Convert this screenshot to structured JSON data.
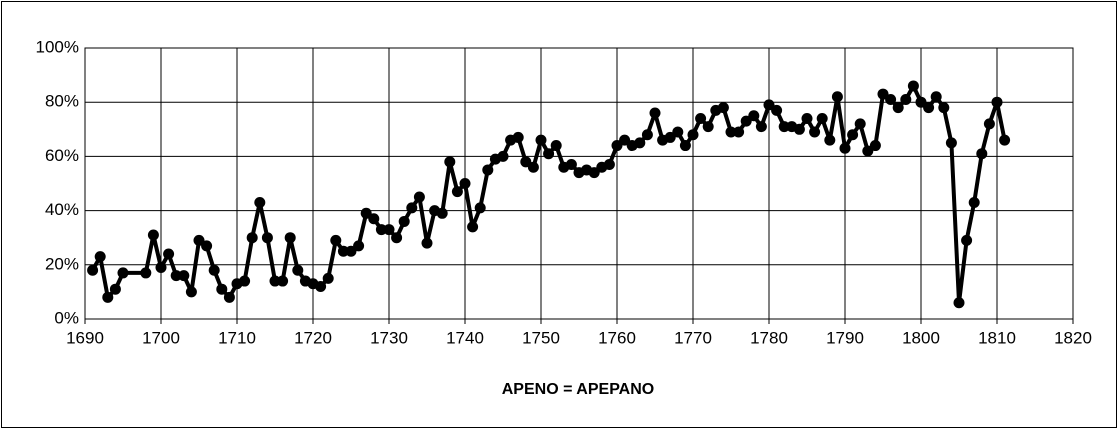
{
  "chart_data": {
    "type": "line",
    "x_label": "APENO = APEPANO",
    "x": [
      1691,
      1692,
      1693,
      1694,
      1695,
      1698,
      1699,
      1700,
      1701,
      1702,
      1703,
      1704,
      1705,
      1706,
      1707,
      1708,
      1709,
      1710,
      1711,
      1712,
      1713,
      1714,
      1715,
      1716,
      1717,
      1718,
      1719,
      1720,
      1721,
      1722,
      1723,
      1724,
      1725,
      1726,
      1727,
      1728,
      1729,
      1730,
      1731,
      1732,
      1733,
      1734,
      1735,
      1736,
      1737,
      1738,
      1739,
      1740,
      1741,
      1742,
      1743,
      1744,
      1745,
      1746,
      1747,
      1748,
      1749,
      1750,
      1751,
      1752,
      1753,
      1754,
      1755,
      1756,
      1757,
      1758,
      1759,
      1760,
      1761,
      1762,
      1763,
      1764,
      1765,
      1766,
      1767,
      1768,
      1769,
      1770,
      1771,
      1772,
      1773,
      1774,
      1775,
      1776,
      1777,
      1778,
      1779,
      1780,
      1781,
      1782,
      1783,
      1784,
      1785,
      1786,
      1787,
      1788,
      1789,
      1790,
      1791,
      1792,
      1793,
      1794,
      1795,
      1796,
      1797,
      1798,
      1799,
      1800,
      1801,
      1802,
      1803,
      1804,
      1805,
      1806,
      1807,
      1808,
      1809,
      1810,
      1811
    ],
    "series": [
      {
        "color": "#000000",
        "values": [
          18,
          23,
          8,
          11,
          17,
          17,
          31,
          19,
          24,
          16,
          16,
          10,
          29,
          27,
          18,
          11,
          8,
          13,
          14,
          30,
          43,
          30,
          14,
          14,
          30,
          18,
          14,
          13,
          12,
          15,
          29,
          25,
          25,
          27,
          39,
          37,
          33,
          33,
          30,
          36,
          41,
          45,
          28,
          40,
          39,
          58,
          47,
          50,
          34,
          41,
          55,
          59,
          60,
          66,
          67,
          58,
          56,
          66,
          61,
          64,
          56,
          57,
          54,
          55,
          54,
          56,
          57,
          64,
          66,
          64,
          65,
          68,
          76,
          66,
          67,
          69,
          64,
          68,
          74,
          71,
          77,
          78,
          69,
          69,
          73,
          75,
          71,
          79,
          77,
          71,
          71,
          70,
          74,
          69,
          74,
          66,
          82,
          63,
          68,
          72,
          62,
          64,
          83,
          81,
          78,
          81,
          86,
          80,
          78,
          82,
          78,
          65,
          6,
          29,
          43,
          61,
          72,
          80,
          66
        ]
      }
    ],
    "xlim": [
      1690,
      1820
    ],
    "xticks": [
      1690,
      1700,
      1710,
      1720,
      1730,
      1740,
      1750,
      1760,
      1770,
      1780,
      1790,
      1800,
      1810,
      1820
    ],
    "ylim": [
      0,
      100
    ],
    "yticks": [
      {
        "value": 0,
        "label": "0%"
      },
      {
        "value": 20,
        "label": "20%"
      },
      {
        "value": 40,
        "label": "40%"
      },
      {
        "value": 60,
        "label": "60%"
      },
      {
        "value": 80,
        "label": "80%"
      },
      {
        "value": 100,
        "label": "100%"
      }
    ],
    "grid": true
  }
}
